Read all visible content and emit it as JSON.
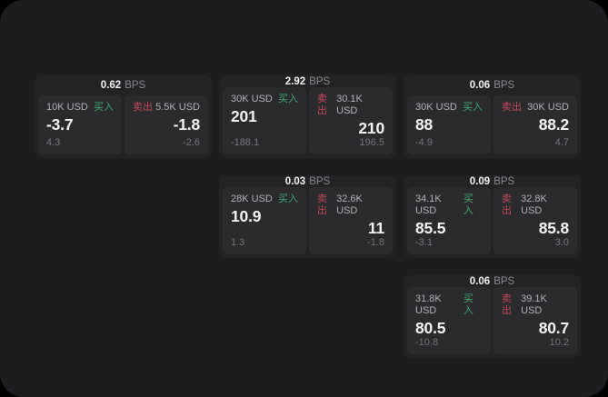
{
  "labels": {
    "bps_unit": "BPS",
    "buy": "买入",
    "sell": "卖出"
  },
  "colors": {
    "background": "#1d1d1f",
    "card": "#232325",
    "panel": "#2b2b2d",
    "buy_green": "#3eac73",
    "sell_red": "#c64a5e",
    "primary_text": "#f4f4f6",
    "secondary_text": "#b4b4b9",
    "muted_text": "#77777c"
  },
  "cards": [
    {
      "bps": "0.62",
      "buy": {
        "amount": "10K USD",
        "value": "-3.7",
        "delta": "4.3"
      },
      "sell": {
        "amount": "5.5K USD",
        "value": "-1.8",
        "delta": "-2.6"
      }
    },
    {
      "bps": "2.92",
      "buy": {
        "amount": "30K USD",
        "value": "201",
        "delta": "-188.1"
      },
      "sell": {
        "amount": "30.1K USD",
        "value": "210",
        "delta": "196.5"
      }
    },
    {
      "bps": "0.06",
      "buy": {
        "amount": "30K USD",
        "value": "88",
        "delta": "-4.9"
      },
      "sell": {
        "amount": "30K USD",
        "value": "88.2",
        "delta": "4.7"
      }
    },
    {
      "bps": "0.03",
      "buy": {
        "amount": "28K USD",
        "value": "10.9",
        "delta": "1.3"
      },
      "sell": {
        "amount": "32.6K USD",
        "value": "11",
        "delta": "-1.8"
      }
    },
    {
      "bps": "0.09",
      "buy": {
        "amount": "34.1K USD",
        "value": "85.5",
        "delta": "-3.1"
      },
      "sell": {
        "amount": "32.8K USD",
        "value": "85.8",
        "delta": "3.0"
      }
    },
    {
      "bps": "0.06",
      "buy": {
        "amount": "31.8K USD",
        "value": "80.5",
        "delta": "-10.8"
      },
      "sell": {
        "amount": "39.1K USD",
        "value": "80.7",
        "delta": "10.2"
      }
    }
  ]
}
